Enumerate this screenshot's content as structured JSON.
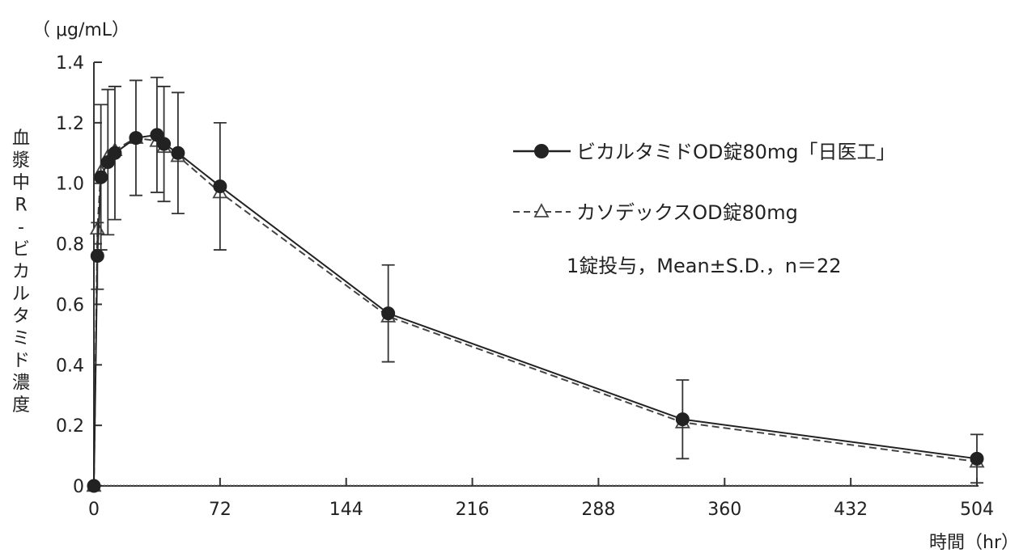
{
  "chart_data": {
    "type": "line",
    "ylabel": "血漿中R-ビカルタミド濃度",
    "yunit": "（ μg/mL）",
    "xlabel": "時間（hr）",
    "xlim": [
      0,
      504
    ],
    "ylim": [
      0,
      1.4
    ],
    "xticks": [
      "0",
      "72",
      "144",
      "216",
      "288",
      "360",
      "432",
      "504"
    ],
    "yticks": [
      "0",
      "0.2",
      "0.4",
      "0.6",
      "0.8",
      "1.0",
      "1.2",
      "1.4"
    ],
    "note": "1錠投与，Mean±S.D.，n＝22",
    "series": [
      {
        "name": "ビカルタミドOD錠80mg「日医工」",
        "marker": "filled-circle",
        "line": "solid",
        "color": "#222222",
        "x": [
          0,
          2,
          4,
          8,
          12,
          24,
          36,
          40,
          48,
          72,
          168,
          336,
          504
        ],
        "y": [
          0,
          0.76,
          1.02,
          1.07,
          1.1,
          1.15,
          1.16,
          1.13,
          1.1,
          0.99,
          0.57,
          0.22,
          0.09
        ],
        "sd": [
          0,
          0.11,
          0.24,
          0.24,
          0.22,
          0.19,
          0.19,
          0.19,
          0.2,
          0.21,
          0.16,
          0.13,
          0.08
        ]
      },
      {
        "name": "カソデックスOD錠80mg",
        "marker": "open-triangle",
        "line": "dashed",
        "color": "#444444",
        "x": [
          0,
          2,
          4,
          8,
          12,
          24,
          36,
          40,
          48,
          72,
          168,
          336,
          504
        ],
        "y": [
          0,
          0.85,
          1.04,
          1.09,
          1.11,
          1.15,
          1.14,
          1.12,
          1.09,
          0.97,
          0.56,
          0.21,
          0.08
        ],
        "sd": [
          0,
          0.11,
          0.22,
          0.22,
          0.2,
          0.19,
          0.17,
          0.18,
          0.19,
          0.2,
          0.16,
          0.12,
          0.07
        ]
      }
    ]
  }
}
